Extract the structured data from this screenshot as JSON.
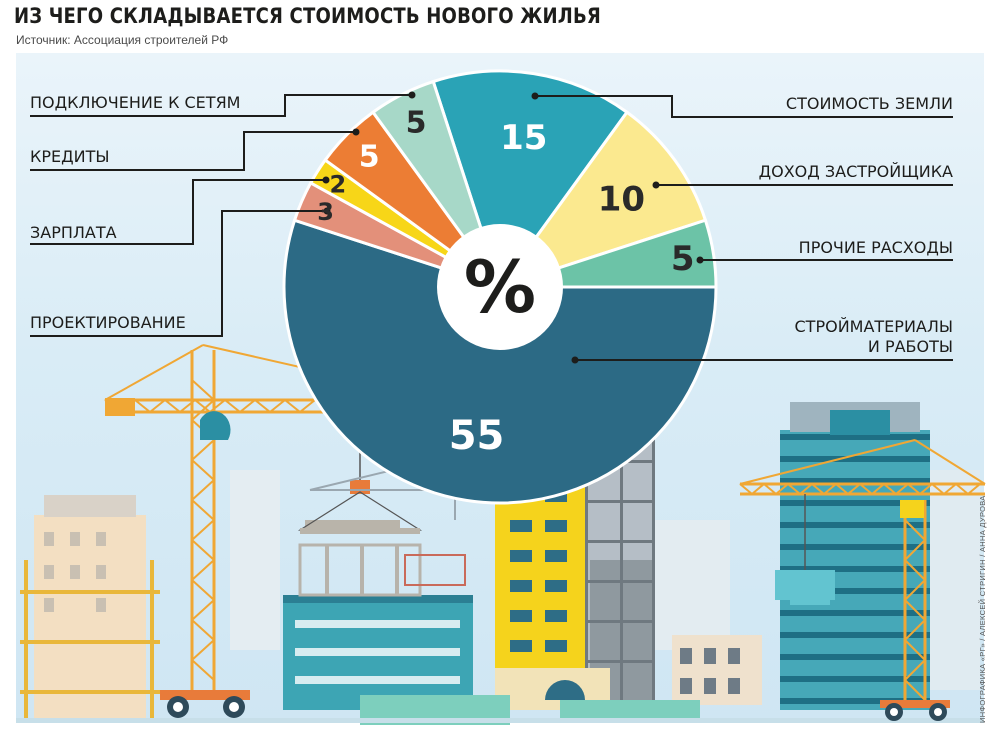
{
  "title": "ИЗ ЧЕГО СКЛАДЫВАЕТСЯ СТОИМОСТЬ НОВОГО ЖИЛЬЯ",
  "subtitle": "Источник: Ассоциация строителей РФ",
  "center_label": "%",
  "credit": "ИНФОГРАФИКА «РГ» / АЛЕКСЕЙ СТРИГИН / АННА ДУРОВА",
  "chart_data": {
    "type": "pie",
    "unit": "%",
    "slices": [
      {
        "label": "СТОИМОСТЬ ЗЕМЛИ",
        "value": 15,
        "color": "#2aa3b6",
        "text_color": "#ffffff"
      },
      {
        "label": "ДОХОД ЗАСТРОЙЩИКА",
        "value": 10,
        "color": "#fbe98f",
        "text_color": "#2a2a2a"
      },
      {
        "label": "ПРОЧИЕ РАСХОДЫ",
        "value": 5,
        "color": "#6cc3a7",
        "text_color": "#2a2a2a"
      },
      {
        "label": "СТРОЙМАТЕРИАЛЫ И РАБОТЫ",
        "value": 55,
        "color": "#2c6a85",
        "text_color": "#ffffff"
      },
      {
        "label": "ПРОЕКТИРОВАНИЕ",
        "value": 3,
        "color": "#e3907a",
        "text_color": "#2a2a2a"
      },
      {
        "label": "ЗАРПЛАТА",
        "value": 2,
        "color": "#f7d618",
        "text_color": "#2a2a2a"
      },
      {
        "label": "КРЕДИТЫ",
        "value": 5,
        "color": "#ec7d34",
        "text_color": "#ffffff"
      },
      {
        "label": "ПОДКЛЮЧЕНИЕ К СЕТЯМ",
        "value": 5,
        "color": "#a7d8c8",
        "text_color": "#2a2a2a"
      }
    ]
  }
}
